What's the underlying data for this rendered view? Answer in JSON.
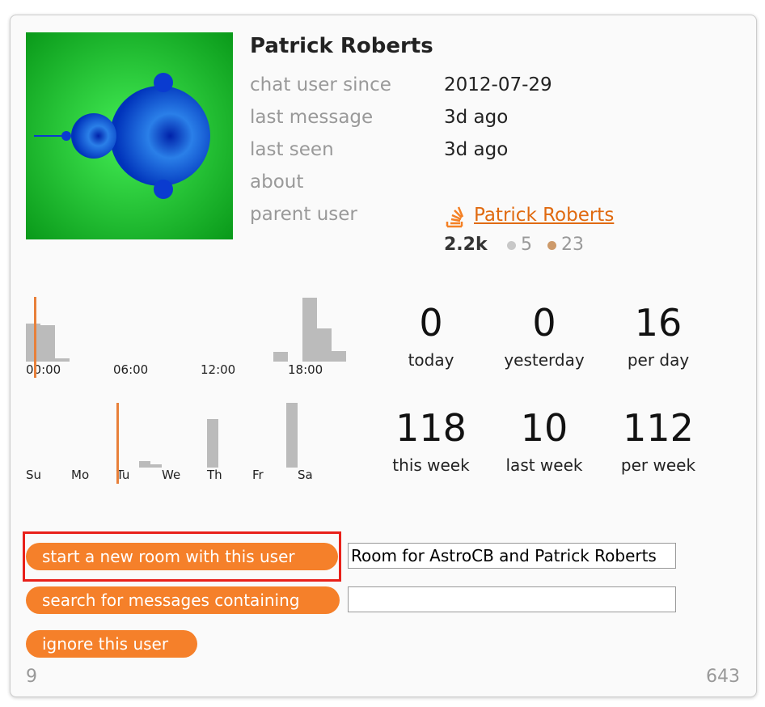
{
  "profile": {
    "name": "Patrick Roberts",
    "fields": [
      {
        "label": "chat user since",
        "value": "2012-07-29"
      },
      {
        "label": "last message",
        "value": "3d ago"
      },
      {
        "label": "last seen",
        "value": "3d ago"
      },
      {
        "label": "about",
        "value": ""
      },
      {
        "label": "parent user",
        "value": "Patrick Roberts"
      }
    ],
    "reputation": "2.2k",
    "silver": 5,
    "bronze": 23
  },
  "activity": {
    "hour_labels": [
      "00:00",
      "06:00",
      "12:00",
      "18:00"
    ],
    "hourly": [
      47,
      45,
      4,
      0,
      0,
      0,
      0,
      0,
      0,
      0,
      0,
      0,
      0,
      0,
      0,
      0,
      0,
      12,
      0,
      79,
      41,
      13,
      0,
      0
    ],
    "day_labels": [
      "Su",
      "Mo",
      "Tu",
      "We",
      "Th",
      "Fr",
      "Sa"
    ],
    "weekly": [
      0,
      0,
      0,
      0,
      0,
      0,
      0,
      0,
      0,
      0,
      8,
      4,
      0,
      0,
      0,
      0,
      60,
      0,
      0,
      0,
      0,
      0,
      0,
      80,
      0,
      0,
      0,
      0
    ]
  },
  "stats": [
    {
      "value": 0,
      "label": "today"
    },
    {
      "value": 0,
      "label": "yesterday"
    },
    {
      "value": 16,
      "label": "per day"
    },
    {
      "value": 118,
      "label": "this week"
    },
    {
      "value": 10,
      "label": "last week"
    },
    {
      "value": 112,
      "label": "per week"
    }
  ],
  "actions": {
    "new_room": "start a new room with this user",
    "room_name": "Room for AstroCB and Patrick Roberts",
    "search": "search for messages containing",
    "ignore": "ignore this user"
  },
  "footer": {
    "left": 9,
    "right": 643
  }
}
